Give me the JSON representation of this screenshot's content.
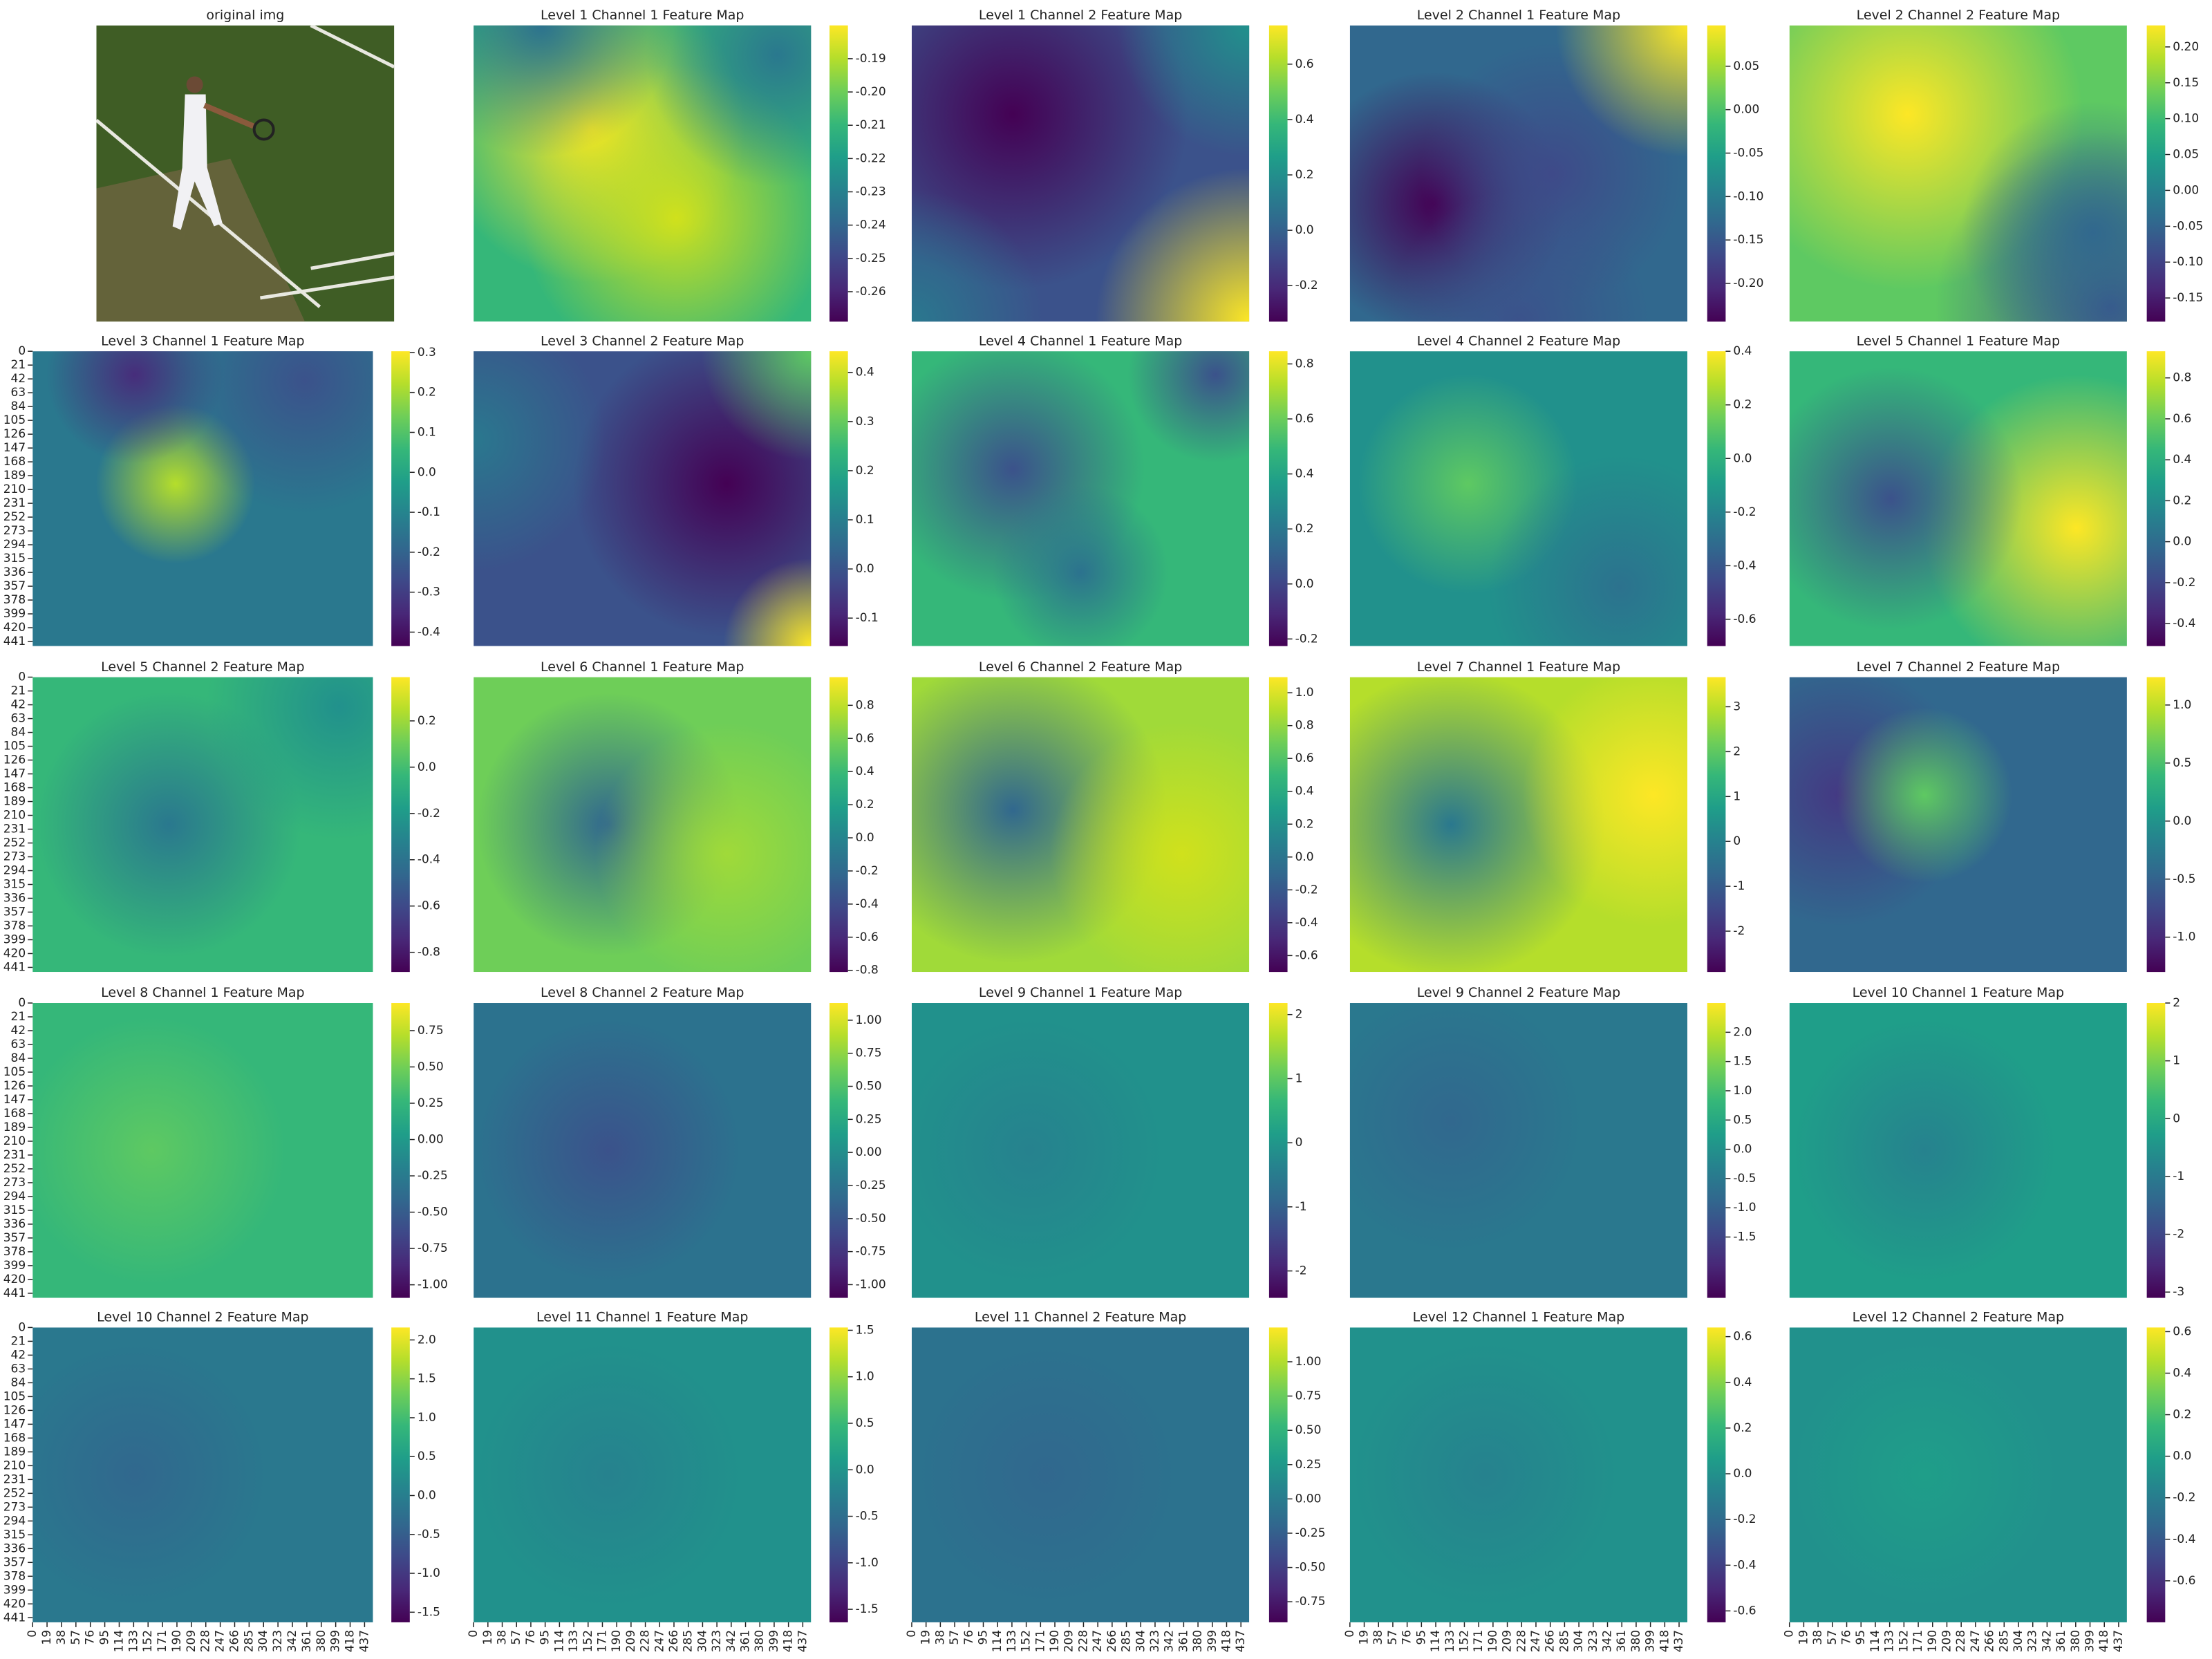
{
  "chart_data": [
    {
      "type": "image",
      "title": "original img"
    },
    {
      "type": "heatmap",
      "title": "Level 1 Channel 1 Feature Map",
      "colormap": "viridis",
      "clim": [
        -0.269,
        -0.18
      ],
      "cticks": [
        -0.26,
        -0.25,
        -0.24,
        -0.23,
        -0.22,
        -0.21,
        {
          "value": -0.2,
          "label": "-0.20"
        },
        -0.19
      ]
    },
    {
      "type": "heatmap",
      "title": "Level 1 Channel 2 Feature Map",
      "colormap": "viridis",
      "clim": [
        -0.33,
        0.74
      ],
      "cticks": [
        -0.2,
        {
          "value": 0,
          "label": "0.0"
        },
        0.2,
        0.4,
        0.6
      ]
    },
    {
      "type": "heatmap",
      "title": "Level 2 Channel 1 Feature Map",
      "colormap": "viridis",
      "clim": [
        -0.244,
        0.097
      ],
      "cticks": [
        {
          "value": -0.2,
          "label": "-0.20"
        },
        -0.15,
        {
          "value": -0.1,
          "label": "-0.10"
        },
        -0.05,
        {
          "value": 0,
          "label": "0.00"
        },
        0.05
      ]
    },
    {
      "type": "heatmap",
      "title": "Level 2 Channel 2 Feature Map",
      "colormap": "viridis",
      "clim": [
        -0.183,
        0.23
      ],
      "cticks": [
        -0.15,
        {
          "value": -0.1,
          "label": "-0.10"
        },
        -0.05,
        {
          "value": 0,
          "label": "0.00"
        },
        0.05,
        {
          "value": 0.1,
          "label": "0.10"
        },
        0.15,
        {
          "value": 0.2,
          "label": "0.20"
        }
      ]
    },
    {
      "type": "heatmap",
      "title": "Level 3 Channel 1 Feature Map",
      "colormap": "viridis",
      "clim": [
        -0.435,
        0.303
      ],
      "cticks": [
        -0.4,
        -0.3,
        -0.2,
        -0.1,
        {
          "value": 0,
          "label": "0.0"
        },
        0.1,
        0.2,
        0.3
      ],
      "ylim": [
        0,
        448
      ],
      "yticks": [
        0,
        21,
        42,
        63,
        84,
        105,
        126,
        147,
        168,
        189,
        210,
        231,
        252,
        273,
        294,
        315,
        336,
        357,
        378,
        399,
        420,
        441
      ]
    },
    {
      "type": "heatmap",
      "title": "Level 3 Channel 2 Feature Map",
      "colormap": "viridis",
      "clim": [
        -0.157,
        0.443
      ],
      "cticks": [
        -0.1,
        {
          "value": 0,
          "label": "0.0"
        },
        0.1,
        0.2,
        0.3,
        0.4
      ]
    },
    {
      "type": "heatmap",
      "title": "Level 4 Channel 1 Feature Map",
      "colormap": "viridis",
      "clim": [
        -0.226,
        0.846
      ],
      "cticks": [
        -0.2,
        {
          "value": 0,
          "label": "0.0"
        },
        0.2,
        0.4,
        0.6,
        0.8
      ]
    },
    {
      "type": "heatmap",
      "title": "Level 4 Channel 2 Feature Map",
      "colormap": "viridis",
      "clim": [
        -0.7,
        0.4
      ],
      "cticks": [
        -0.6,
        -0.4,
        -0.2,
        {
          "value": 0,
          "label": "0.0"
        },
        0.2,
        0.4
      ]
    },
    {
      "type": "heatmap",
      "title": "Level 5 Channel 1 Feature Map",
      "colormap": "viridis",
      "clim": [
        -0.51,
        0.93
      ],
      "cticks": [
        -0.4,
        -0.2,
        {
          "value": 0,
          "label": "0.0"
        },
        0.2,
        0.4,
        0.6,
        0.8
      ]
    },
    {
      "type": "heatmap",
      "title": "Level 5 Channel 2 Feature Map",
      "colormap": "viridis",
      "clim": [
        -0.885,
        0.389
      ],
      "cticks": [
        -0.8,
        -0.6,
        -0.4,
        -0.2,
        {
          "value": 0,
          "label": "0.0"
        },
        0.2
      ],
      "ylim": [
        0,
        448
      ],
      "yticks": [
        0,
        21,
        42,
        63,
        84,
        105,
        126,
        147,
        168,
        189,
        210,
        231,
        252,
        273,
        294,
        315,
        336,
        357,
        378,
        399,
        420,
        441
      ]
    },
    {
      "type": "heatmap",
      "title": "Level 6 Channel 1 Feature Map",
      "colormap": "viridis",
      "clim": [
        -0.81,
        0.97
      ],
      "cticks": [
        -0.8,
        -0.6,
        -0.4,
        -0.2,
        {
          "value": 0,
          "label": "0.0"
        },
        0.2,
        0.4,
        0.6,
        0.8
      ]
    },
    {
      "type": "heatmap",
      "title": "Level 6 Channel 2 Feature Map",
      "colormap": "viridis",
      "clim": [
        -0.7,
        1.095
      ],
      "cticks": [
        -0.6,
        -0.4,
        -0.2,
        {
          "value": 0,
          "label": "0.0"
        },
        0.2,
        0.4,
        0.6,
        0.8,
        {
          "value": 1,
          "label": "1.0"
        }
      ]
    },
    {
      "type": "heatmap",
      "title": "Level 7 Channel 1 Feature Map",
      "colormap": "viridis",
      "clim": [
        -2.91,
        3.66
      ],
      "cticks": [
        -2,
        -1,
        0,
        1,
        2,
        3
      ]
    },
    {
      "type": "heatmap",
      "title": "Level 7 Channel 2 Feature Map",
      "colormap": "viridis",
      "clim": [
        -1.3,
        1.24
      ],
      "cticks": [
        {
          "value": -1,
          "label": "-1.0"
        },
        -0.5,
        {
          "value": 0,
          "label": "0.0"
        },
        0.5,
        {
          "value": 1,
          "label": "1.0"
        }
      ]
    },
    {
      "type": "heatmap",
      "title": "Level 8 Channel 1 Feature Map",
      "colormap": "viridis",
      "clim": [
        -1.09,
        0.94
      ],
      "cticks": [
        {
          "value": -1,
          "label": "-1.00"
        },
        -0.75,
        {
          "value": -0.5,
          "label": "-0.50"
        },
        -0.25,
        {
          "value": 0,
          "label": "0.00"
        },
        0.25,
        {
          "value": 0.5,
          "label": "0.50"
        },
        0.75
      ],
      "ylim": [
        0,
        448
      ],
      "yticks": [
        0,
        21,
        42,
        63,
        84,
        105,
        126,
        147,
        168,
        189,
        210,
        231,
        252,
        273,
        294,
        315,
        336,
        357,
        378,
        399,
        420,
        441
      ]
    },
    {
      "type": "heatmap",
      "title": "Level 8 Channel 2 Feature Map",
      "colormap": "viridis",
      "clim": [
        -1.1,
        1.13
      ],
      "cticks": [
        {
          "value": -1,
          "label": "-1.00"
        },
        -0.75,
        {
          "value": -0.5,
          "label": "-0.50"
        },
        -0.25,
        {
          "value": 0,
          "label": "0.00"
        },
        0.25,
        {
          "value": 0.5,
          "label": "0.50"
        },
        0.75,
        {
          "value": 1,
          "label": "1.00"
        }
      ]
    },
    {
      "type": "heatmap",
      "title": "Level 9 Channel 1 Feature Map",
      "colormap": "viridis",
      "clim": [
        -2.42,
        2.18
      ],
      "cticks": [
        -2,
        -1,
        0,
        1,
        2
      ]
    },
    {
      "type": "heatmap",
      "title": "Level 9 Channel 2 Feature Map",
      "colormap": "viridis",
      "clim": [
        -2.54,
        2.5
      ],
      "cticks": [
        -1.5,
        {
          "value": -1,
          "label": "-1.0"
        },
        -0.5,
        {
          "value": 0,
          "label": "0.0"
        },
        0.5,
        {
          "value": 1,
          "label": "1.0"
        },
        1.5,
        {
          "value": 2,
          "label": "2.0"
        }
      ]
    },
    {
      "type": "heatmap",
      "title": "Level 10 Channel 1 Feature Map",
      "colormap": "viridis",
      "clim": [
        -3.1,
        2
      ],
      "cticks": [
        -3,
        -2,
        -1,
        0,
        1,
        2
      ]
    },
    {
      "type": "heatmap",
      "title": "Level 10 Channel 2 Feature Map",
      "colormap": "viridis",
      "clim": [
        -1.63,
        2.16
      ],
      "cticks": [
        -1.5,
        {
          "value": -1,
          "label": "-1.0"
        },
        -0.5,
        {
          "value": 0,
          "label": "0.0"
        },
        0.5,
        {
          "value": 1,
          "label": "1.0"
        },
        1.5,
        {
          "value": 2,
          "label": "2.0"
        }
      ],
      "ylim": [
        0,
        448
      ],
      "yticks": [
        0,
        21,
        42,
        63,
        84,
        105,
        126,
        147,
        168,
        189,
        210,
        231,
        252,
        273,
        294,
        315,
        336,
        357,
        378,
        399,
        420,
        441
      ],
      "xlim": [
        0,
        448
      ],
      "xticks": [
        0,
        19,
        38,
        57,
        76,
        95,
        114,
        133,
        152,
        171,
        190,
        209,
        228,
        247,
        266,
        285,
        304,
        323,
        342,
        361,
        380,
        399,
        418,
        437
      ]
    },
    {
      "type": "heatmap",
      "title": "Level 11 Channel 1 Feature Map",
      "colormap": "viridis",
      "clim": [
        -1.64,
        1.53
      ],
      "cticks": [
        -1.5,
        {
          "value": -1,
          "label": "-1.0"
        },
        -0.5,
        {
          "value": 0,
          "label": "0.0"
        },
        0.5,
        {
          "value": 1,
          "label": "1.0"
        },
        1.5
      ],
      "xlim": [
        0,
        448
      ],
      "xticks": [
        0,
        19,
        38,
        57,
        76,
        95,
        114,
        133,
        152,
        171,
        190,
        209,
        228,
        247,
        266,
        285,
        304,
        323,
        342,
        361,
        380,
        399,
        418,
        437
      ]
    },
    {
      "type": "heatmap",
      "title": "Level 11 Channel 2 Feature Map",
      "colormap": "viridis",
      "clim": [
        -0.9,
        1.25
      ],
      "cticks": [
        -0.75,
        {
          "value": -0.5,
          "label": "-0.50"
        },
        -0.25,
        {
          "value": 0,
          "label": "0.00"
        },
        0.25,
        {
          "value": 0.5,
          "label": "0.50"
        },
        0.75,
        {
          "value": 1,
          "label": "1.00"
        }
      ],
      "xlim": [
        0,
        448
      ],
      "xticks": [
        0,
        19,
        38,
        57,
        76,
        95,
        114,
        133,
        152,
        171,
        190,
        209,
        228,
        247,
        266,
        285,
        304,
        323,
        342,
        361,
        380,
        399,
        418,
        437
      ]
    },
    {
      "type": "heatmap",
      "title": "Level 12 Channel 1 Feature Map",
      "colormap": "viridis",
      "clim": [
        -0.65,
        0.64
      ],
      "cticks": [
        -0.6,
        -0.4,
        -0.2,
        {
          "value": 0,
          "label": "0.0"
        },
        0.2,
        0.4,
        0.6
      ],
      "xlim": [
        0,
        448
      ],
      "xticks": [
        0,
        19,
        38,
        57,
        76,
        95,
        114,
        133,
        152,
        171,
        190,
        209,
        228,
        247,
        266,
        285,
        304,
        323,
        342,
        361,
        380,
        399,
        418,
        437
      ]
    },
    {
      "type": "heatmap",
      "title": "Level 12 Channel 2 Feature Map",
      "colormap": "viridis",
      "clim": [
        -0.8,
        0.62
      ],
      "cticks": [
        -0.6,
        -0.4,
        -0.2,
        {
          "value": 0,
          "label": "0.0"
        },
        0.2,
        0.4,
        0.6
      ],
      "xlim": [
        0,
        448
      ],
      "xticks": [
        0,
        19,
        38,
        57,
        76,
        95,
        114,
        133,
        152,
        171,
        190,
        209,
        228,
        247,
        266,
        285,
        304,
        323,
        342,
        361,
        380,
        399,
        418,
        437
      ]
    }
  ]
}
